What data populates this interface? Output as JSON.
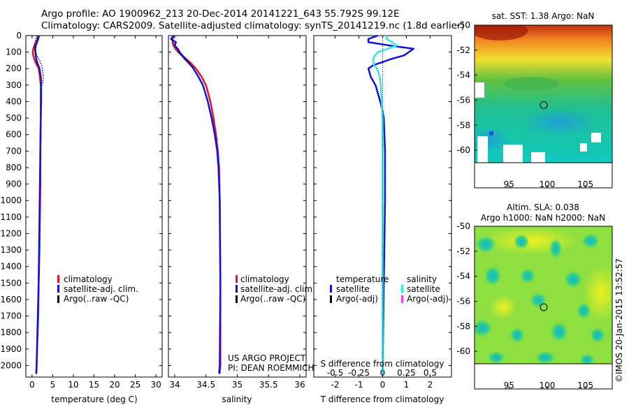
{
  "header": {
    "line1": "Argo profile: AO 1900962_213 20-Dec-2014 20141221_643 55.792S 99.12E",
    "line2": "Climatology: CARS2009. Satellite-adjusted climatology: synTS_20141219.nc (1.8d earlier)"
  },
  "colors": {
    "climatology": "#e8141c",
    "satellite": "#1010e0",
    "argo": "#000000",
    "sal_satellite": "#33e8e8",
    "sal_argo": "#ff33ff"
  },
  "chart_data": [
    {
      "type": "line",
      "name": "temperature",
      "xlabel": "temperature (deg C)",
      "ylabel": "",
      "xlim": [
        -1.5,
        31.5
      ],
      "ylim": [
        2070,
        0
      ],
      "xticks": [
        "0",
        "5",
        "10",
        "15",
        "20",
        "25",
        "30"
      ],
      "yticks": [
        "0",
        "100",
        "200",
        "300",
        "400",
        "500",
        "600",
        "700",
        "800",
        "900",
        "1000",
        "1100",
        "1200",
        "1300",
        "1400",
        "1500",
        "1600",
        "1700",
        "1800",
        "1900",
        "2000"
      ],
      "legend": [
        "climatology",
        "satellite-adj. clim.",
        "Argo(..raw -QC)"
      ],
      "series": [
        {
          "name": "climatology",
          "depth": [
            0,
            20,
            40,
            60,
            80,
            100,
            120,
            140,
            160,
            180,
            200,
            250,
            300,
            400,
            500,
            700,
            900,
            1100,
            1300,
            1500,
            1700,
            1900,
            2000,
            2050
          ],
          "values": [
            1.5,
            1.3,
            1.0,
            0.6,
            0.3,
            0.2,
            0.3,
            0.5,
            0.8,
            1.2,
            1.6,
            1.9,
            2.1,
            2.1,
            2.1,
            2.0,
            2.0,
            1.9,
            1.8,
            1.6,
            1.5,
            1.2,
            1.1,
            1.0
          ]
        },
        {
          "name": "satellite-adj. clim.",
          "depth": [
            0,
            20,
            40,
            60,
            80,
            100,
            120,
            140,
            160,
            180,
            200,
            250,
            300,
            400,
            500,
            700,
            900,
            1100,
            1300,
            1500,
            1700,
            1900,
            2000,
            2050
          ],
          "values": [
            1.7,
            1.5,
            1.2,
            0.9,
            0.8,
            0.8,
            0.9,
            1.0,
            1.2,
            1.5,
            1.8,
            2.1,
            2.2,
            2.2,
            2.1,
            2.0,
            1.9,
            1.8,
            1.7,
            1.6,
            1.4,
            1.2,
            1.1,
            1.0
          ]
        },
        {
          "name": "Argo(..raw -QC)",
          "depth": [
            0,
            20,
            40,
            60,
            80,
            100,
            120,
            140,
            160,
            180,
            200,
            220,
            240,
            260,
            280,
            300
          ],
          "values": [
            1.2,
            1.0,
            0.7,
            0.5,
            0.5,
            0.8,
            1.2,
            1.6,
            2.0,
            2.3,
            2.5,
            2.6,
            2.7,
            2.7,
            2.6,
            2.5
          ]
        }
      ]
    },
    {
      "type": "line",
      "name": "salinity",
      "xlabel": "salinity",
      "ylabel": "",
      "xlim": [
        33.9,
        36.1
      ],
      "ylim": [
        2070,
        0
      ],
      "xticks": [
        "34",
        "34.5",
        "35",
        "35.5",
        "36"
      ],
      "legend": [
        "climatology",
        "satellite-adj. clim.",
        "Argo(..raw -QC)"
      ],
      "annotations": [
        "US ARGO PROJECT",
        "PI: DEAN ROEMMICH"
      ],
      "series": [
        {
          "name": "climatology",
          "depth": [
            0,
            20,
            40,
            60,
            80,
            100,
            120,
            140,
            160,
            180,
            200,
            250,
            300,
            400,
            500,
            600,
            700,
            800,
            1000,
            1500,
            2000,
            2050
          ],
          "values": [
            33.98,
            33.96,
            33.97,
            33.99,
            34.02,
            34.06,
            34.12,
            34.18,
            34.24,
            34.29,
            34.34,
            34.43,
            34.5,
            34.57,
            34.62,
            34.66,
            34.69,
            34.71,
            34.72,
            34.73,
            34.73,
            34.72
          ]
        },
        {
          "name": "satellite-adj. clim.",
          "depth": [
            0,
            20,
            40,
            60,
            80,
            100,
            120,
            140,
            160,
            180,
            200,
            250,
            300,
            400,
            500,
            600,
            700,
            800,
            1000,
            1500,
            2000,
            2050
          ],
          "values": [
            33.99,
            33.94,
            34.02,
            34.0,
            34.05,
            34.08,
            34.12,
            34.16,
            34.21,
            34.26,
            34.3,
            34.38,
            34.45,
            34.53,
            34.59,
            34.64,
            34.68,
            34.7,
            34.72,
            34.73,
            34.72,
            34.71
          ]
        },
        {
          "name": "Argo(..raw -QC)",
          "depth": [
            0,
            20,
            40,
            60,
            80,
            100,
            120,
            140,
            160,
            180,
            200
          ],
          "values": [
            33.98,
            33.97,
            33.96,
            33.97,
            34.0,
            34.05,
            34.1,
            34.15,
            34.2,
            34.25,
            34.3
          ]
        }
      ]
    },
    {
      "type": "line",
      "name": "difference",
      "xlabel": "T difference from climatology",
      "xlabel_top": "S difference from climatology",
      "xlim": [
        -2.9,
        2.9
      ],
      "ylim": [
        2070,
        0
      ],
      "xticks": [
        "-2",
        "-1",
        "0",
        "1",
        "2"
      ],
      "xticks_top": [
        "-0.5",
        "-0.25",
        "0",
        "0.25",
        "0.5"
      ],
      "legend_title_t": "temperature",
      "legend_title_s": "salinity",
      "legend_t": [
        "satellite",
        "Argo(-adj)"
      ],
      "legend_s": [
        "satellite",
        "Argo(-adj)"
      ],
      "series": [
        {
          "name": "temperature satellite",
          "depth": [
            0,
            20,
            40,
            60,
            80,
            100,
            120,
            140,
            160,
            180,
            200,
            250,
            300,
            400,
            460,
            500,
            700,
            1000,
            1500,
            2000,
            2050
          ],
          "values": [
            -0.2,
            -0.6,
            -0.6,
            0.3,
            1.3,
            1.1,
            0.9,
            0.4,
            0.0,
            -0.4,
            -0.6,
            -0.5,
            -0.3,
            -0.1,
            0.0,
            0.05,
            0.1,
            0.1,
            0.05,
            0.0,
            0.0
          ]
        },
        {
          "name": "salinity satellite",
          "depth": [
            0,
            20,
            40,
            60,
            80,
            100,
            120,
            140,
            160,
            180,
            200,
            250,
            300,
            400,
            500,
            600,
            700,
            800,
            1000,
            1500,
            2000,
            2050
          ],
          "values": [
            0.05,
            0.04,
            0.1,
            0.15,
            0.05,
            -0.05,
            -0.08,
            -0.1,
            -0.1,
            -0.09,
            -0.06,
            -0.03,
            -0.02,
            -0.01,
            0.0,
            0.0,
            0.0,
            0.0,
            0.0,
            0.0,
            0.0,
            0.0
          ]
        },
        {
          "name": "zero",
          "depth": [
            0,
            2050
          ],
          "values": [
            0,
            0
          ]
        }
      ]
    },
    {
      "type": "heatmap",
      "name": "sst-map",
      "title": "sat. SST: 1.38 Argo: NaN",
      "xlim": [
        90.5,
        108.5
      ],
      "ylim": [
        -61,
        -50
      ],
      "xticks": [
        "95",
        "100",
        "105"
      ],
      "yticks": [
        "-50",
        "-52",
        "-54",
        "-56",
        "-58",
        "-60"
      ],
      "argo_position": [
        99.12,
        -55.792
      ]
    },
    {
      "type": "heatmap",
      "name": "sla-map",
      "title": "Altim. SLA: 0.038",
      "subtitle": "Argo h1000: NaN h2000: NaN",
      "xlim": [
        90.5,
        108.5
      ],
      "ylim": [
        -61,
        -50
      ],
      "xticks": [
        "95",
        "100",
        "105"
      ],
      "yticks": [
        "-50",
        "-52",
        "-54",
        "-56",
        "-58",
        "-60"
      ],
      "argo_position": [
        99.12,
        -55.792
      ]
    }
  ],
  "footer": "©IMOS 20-Jan-2015 13:52:57"
}
